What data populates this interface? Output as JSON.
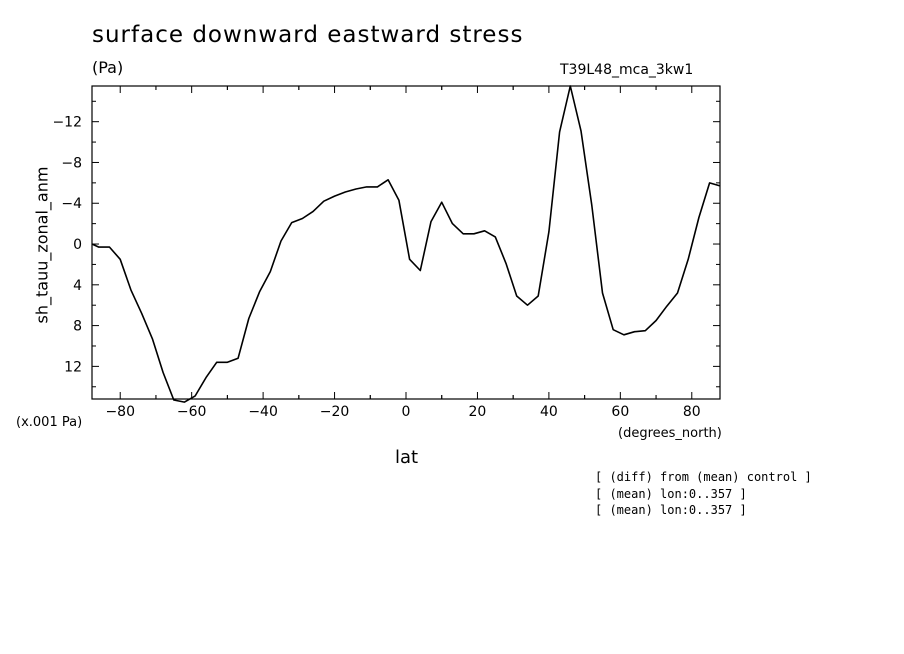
{
  "title": "surface downward eastward stress",
  "units": "(Pa)",
  "run_label": "T39L48_mca_3kw1",
  "y_scale_note": "(x.001 Pa)",
  "x_units": "(degrees_north)",
  "notes": [
    "[ (diff) from (mean) control ]",
    "[ (mean) lon:0..357 ]",
    "[ (mean) lon:0..357 ]"
  ],
  "chart_data": {
    "type": "line",
    "title": "surface downward eastward stress",
    "xlabel": "lat",
    "ylabel": "sh_tauu_zonal_anm",
    "xlim": [
      -87.9,
      87.9
    ],
    "ylim": [
      15.2,
      -15.5
    ],
    "y_inverted": true,
    "xticks": [
      -80,
      -60,
      -40,
      -20,
      0,
      20,
      40,
      60,
      80
    ],
    "yticks": [
      12,
      8,
      4,
      0,
      -4,
      -8,
      -12
    ],
    "ytick_labels": [
      "12",
      "8",
      "4",
      "0",
      "−4",
      "−8",
      "−12"
    ],
    "xtick_labels": [
      "−80",
      "−60",
      "−40",
      "−20",
      "0",
      "20",
      "40",
      "60",
      "80"
    ],
    "grid": false,
    "series": [
      {
        "x": [
          -87.9,
          -86,
          -83,
          -80,
          -77,
          -74,
          -71,
          -68,
          -65,
          -62,
          -59,
          -56,
          -53,
          -50,
          -47,
          -44,
          -41,
          -38,
          -35,
          -32,
          -29,
          -26,
          -23,
          -20,
          -17,
          -14,
          -11,
          -8,
          -5,
          -2,
          1,
          4,
          7,
          10,
          13,
          16,
          19,
          22,
          25,
          28,
          31,
          34,
          37,
          40,
          43,
          46,
          49,
          52,
          55,
          58,
          61,
          64,
          67,
          70,
          73,
          76,
          79,
          82,
          85,
          87.9
        ],
        "y": [
          0,
          0.3,
          0.3,
          1.5,
          4.5,
          6.8,
          9.3,
          12.6,
          15.3,
          15.5,
          14.9,
          13.1,
          11.6,
          11.6,
          11.2,
          7.3,
          4.7,
          2.7,
          -0.3,
          -2.1,
          -2.5,
          -3.2,
          -4.2,
          -4.7,
          -5.1,
          -5.4,
          -5.6,
          -5.6,
          -6.3,
          -4.3,
          1.5,
          2.6,
          -2.2,
          -4.1,
          -2.0,
          -1.0,
          -1.0,
          -1.3,
          -0.7,
          1.9,
          5.1,
          6.0,
          5.1,
          -1.2,
          -11.0,
          -15.5,
          -11.1,
          -3.8,
          4.8,
          8.4,
          8.9,
          8.6,
          8.5,
          7.5,
          6.1,
          4.8,
          1.5,
          -2.6,
          -6.0,
          -5.7
        ]
      }
    ]
  }
}
